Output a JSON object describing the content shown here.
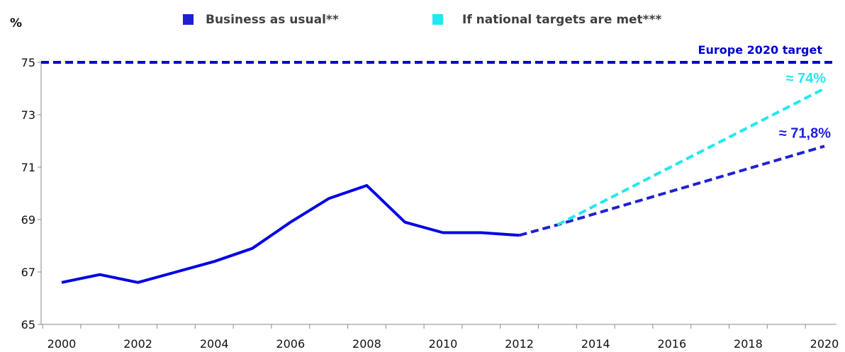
{
  "chart_data": {
    "type": "line",
    "unit_label": "%",
    "xlim": [
      2000,
      2020
    ],
    "ylim": [
      65,
      75
    ],
    "x_ticks": [
      "2000",
      "2002",
      "2004",
      "2006",
      "2008",
      "2010",
      "2012",
      "2014",
      "2016",
      "2018",
      "2020"
    ],
    "y_ticks": [
      "65",
      "67",
      "69",
      "71",
      "73",
      "75"
    ],
    "legend_position": "top-center",
    "grid": false,
    "colors": {
      "historical": "#0000e6",
      "bau": "#1f1fd6",
      "national": "#22e8f0",
      "target": "#0000d0"
    },
    "historical": {
      "x": [
        2000,
        2001,
        2002,
        2003,
        2004,
        2005,
        2006,
        2007,
        2008,
        2009,
        2010,
        2011,
        2012
      ],
      "y": [
        66.6,
        66.9,
        66.6,
        67.0,
        67.4,
        67.9,
        68.9,
        69.8,
        70.3,
        68.9,
        68.5,
        68.5,
        68.4
      ]
    },
    "series": [
      {
        "name": "Business as usual**",
        "x": [
          2012,
          2013,
          2020
        ],
        "y": [
          68.4,
          68.8,
          71.8
        ],
        "end_label": "≈ 71,8%",
        "style": "dashed"
      },
      {
        "name": "If national targets are met***",
        "x": [
          2013,
          2020
        ],
        "y": [
          68.8,
          74.0
        ],
        "end_label": "≈ 74%",
        "style": "dashed"
      }
    ],
    "target": {
      "label": "Europe 2020 target",
      "value": 75
    }
  }
}
